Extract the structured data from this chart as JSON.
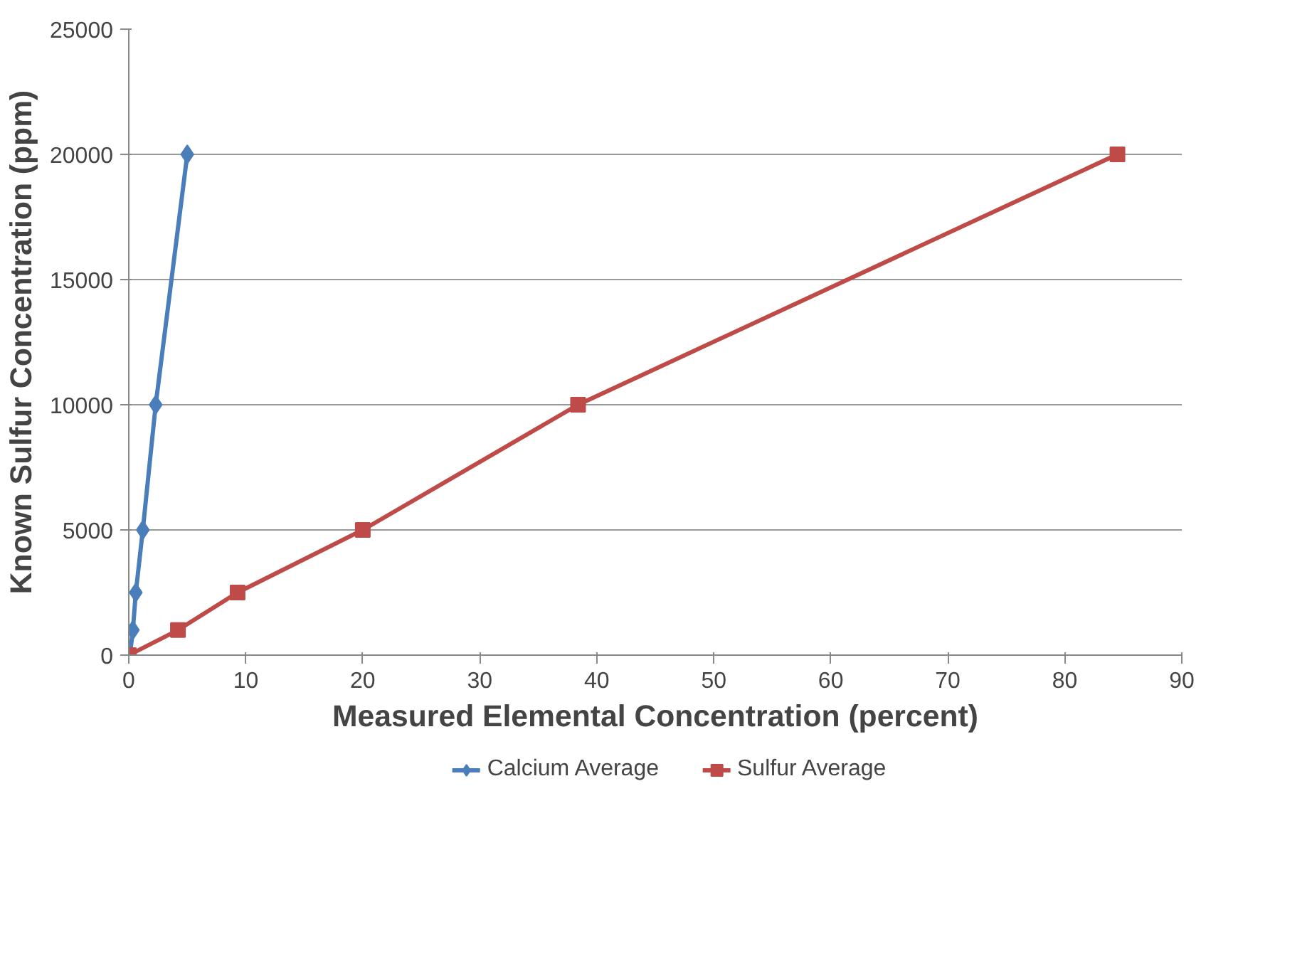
{
  "chart_data": {
    "type": "line",
    "xlabel": "Measured Elemental Concentration (percent)",
    "ylabel": "Known Sulfur Concentration (ppm)",
    "xlim": [
      0,
      90
    ],
    "xticks": [
      0,
      10,
      20,
      30,
      40,
      50,
      60,
      70,
      80,
      90
    ],
    "ylim": [
      0,
      25000
    ],
    "yticks": [
      0,
      5000,
      10000,
      15000,
      20000,
      25000
    ],
    "grid": "y",
    "legend": "bottom",
    "series": [
      {
        "name": "Calcium Average",
        "color": "#4a7ebb",
        "marker": "diamond",
        "x": [
          0.1,
          0.35,
          0.6,
          1.2,
          2.3,
          5.0
        ],
        "values": [
          0,
          1000,
          2500,
          5000,
          10000,
          20000
        ]
      },
      {
        "name": "Sulfur Average",
        "color": "#be4b48",
        "marker": "square",
        "x": [
          0,
          4.2,
          9.3,
          20.0,
          38.4,
          84.5
        ],
        "values": [
          0,
          1000,
          2500,
          5000,
          10000,
          20000
        ]
      }
    ]
  }
}
